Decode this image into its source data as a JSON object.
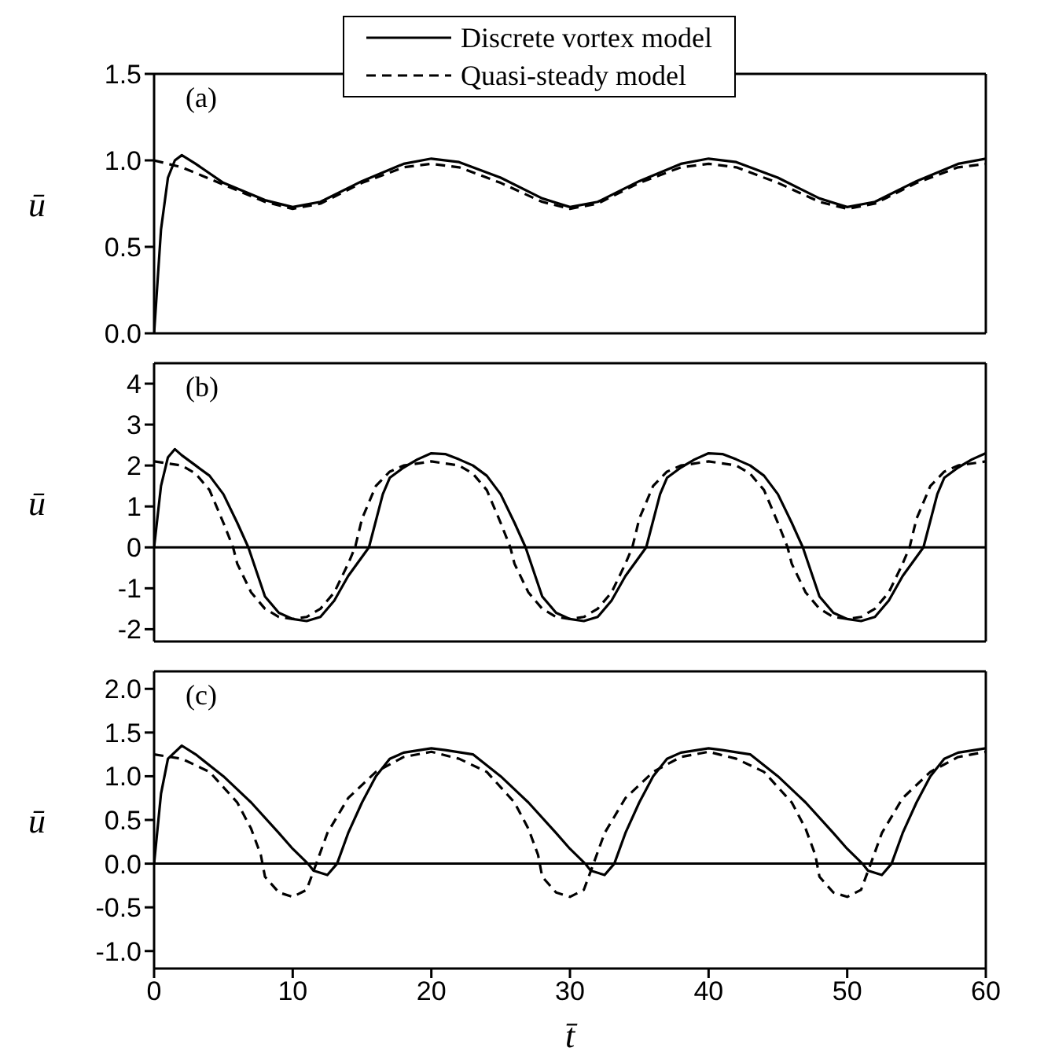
{
  "chart_data": [
    {
      "type": "line",
      "ylabel": "ū",
      "annotations": [
        "(a)"
      ],
      "legend": "top",
      "tick_labels": "y",
      "xlim": [
        0,
        60
      ],
      "xticks": [
        0,
        10,
        20,
        30,
        40,
        50,
        60
      ],
      "ylim": [
        0,
        1.5
      ],
      "yticks": [
        {
          "value": 0,
          "label": "0.0"
        },
        {
          "value": 0.5,
          "label": "0.5"
        },
        {
          "value": 1,
          "label": "1.0"
        },
        {
          "value": 1.5,
          "label": "1.5"
        }
      ],
      "series": [
        {
          "name": "Discrete vortex model",
          "color": "#000000",
          "line_style": "solid",
          "x": [
            0,
            0.5,
            1,
            1.5,
            2,
            3,
            5,
            8,
            10,
            12,
            15,
            18,
            20,
            22,
            25,
            28,
            30,
            32,
            35,
            38,
            40,
            42,
            45,
            48,
            50,
            52,
            55,
            58,
            60
          ],
          "values": [
            0,
            0.6,
            0.9,
            1.0,
            1.03,
            0.98,
            0.87,
            0.77,
            0.73,
            0.76,
            0.88,
            0.98,
            1.01,
            0.99,
            0.9,
            0.78,
            0.73,
            0.76,
            0.88,
            0.98,
            1.01,
            0.99,
            0.9,
            0.78,
            0.73,
            0.76,
            0.88,
            0.98,
            1.01
          ]
        },
        {
          "name": "Quasi-steady model",
          "color": "#000000",
          "line_style": "dashed",
          "x": [
            0,
            2,
            5,
            8,
            10,
            12,
            15,
            18,
            20,
            22,
            25,
            28,
            30,
            32,
            35,
            38,
            40,
            42,
            45,
            48,
            50,
            52,
            55,
            58,
            60
          ],
          "values": [
            1.0,
            0.96,
            0.86,
            0.76,
            0.72,
            0.75,
            0.87,
            0.96,
            0.98,
            0.96,
            0.87,
            0.76,
            0.72,
            0.75,
            0.87,
            0.96,
            0.98,
            0.96,
            0.87,
            0.76,
            0.72,
            0.75,
            0.87,
            0.96,
            0.98
          ]
        }
      ]
    },
    {
      "type": "line",
      "ylabel": "ū",
      "annotations": [
        "(b)"
      ],
      "tick_labels": "y",
      "xlim": [
        0,
        60
      ],
      "xticks": [
        0,
        10,
        20,
        30,
        40,
        50,
        60
      ],
      "ylim": [
        -2.3,
        4.5
      ],
      "yticks": [
        -2,
        -1,
        0,
        1,
        2,
        3,
        4
      ],
      "ref_lines": [
        {
          "axis": "y",
          "value": 0,
          "color": "#000000"
        }
      ],
      "series": [
        {
          "color": "#000000",
          "line_style": "solid",
          "x": [
            0,
            0.5,
            1,
            1.5,
            2,
            3,
            4,
            5,
            6,
            6.8,
            7.5,
            8,
            9,
            10,
            11,
            12,
            13,
            14,
            15.5,
            16.5,
            17,
            18,
            19,
            20,
            21,
            22,
            23,
            24,
            25,
            26,
            26.8,
            27.5,
            28,
            29,
            30,
            31,
            32,
            33,
            34,
            35.5,
            36.5,
            37,
            38,
            39,
            40,
            41,
            42,
            43,
            44,
            45,
            46,
            46.8,
            47.5,
            48,
            49,
            50,
            51,
            52,
            53,
            54,
            55.5,
            56.5,
            57,
            58,
            59,
            60
          ],
          "values": [
            0,
            1.5,
            2.2,
            2.4,
            2.25,
            2.0,
            1.75,
            1.3,
            0.6,
            0,
            -0.7,
            -1.2,
            -1.6,
            -1.75,
            -1.8,
            -1.7,
            -1.3,
            -0.7,
            0,
            1.3,
            1.7,
            1.95,
            2.15,
            2.3,
            2.28,
            2.15,
            2.0,
            1.75,
            1.3,
            0.6,
            0,
            -0.7,
            -1.2,
            -1.6,
            -1.75,
            -1.8,
            -1.7,
            -1.3,
            -0.7,
            0,
            1.3,
            1.7,
            1.95,
            2.15,
            2.3,
            2.28,
            2.15,
            2.0,
            1.75,
            1.3,
            0.6,
            0,
            -0.7,
            -1.2,
            -1.6,
            -1.75,
            -1.8,
            -1.7,
            -1.3,
            -0.7,
            0,
            1.3,
            1.7,
            1.95,
            2.15,
            2.3
          ]
        },
        {
          "color": "#000000",
          "line_style": "dashed",
          "x": [
            0,
            2,
            3,
            4,
            5,
            5.7,
            6,
            7,
            8,
            9,
            10,
            11,
            12,
            13,
            14,
            14.5,
            15,
            16,
            17,
            18,
            20,
            22,
            23,
            24,
            25,
            25.7,
            26,
            27,
            28,
            29,
            30,
            31,
            32,
            33,
            34,
            34.5,
            35,
            36,
            37,
            38,
            40,
            42,
            43,
            44,
            45,
            45.7,
            46,
            47,
            48,
            49,
            50,
            51,
            52,
            53,
            54,
            54.5,
            55,
            56,
            57,
            58,
            60
          ],
          "values": [
            2.1,
            2.0,
            1.8,
            1.4,
            0.6,
            0,
            -0.4,
            -1.1,
            -1.5,
            -1.7,
            -1.75,
            -1.7,
            -1.5,
            -1.1,
            -0.4,
            0,
            0.7,
            1.5,
            1.85,
            2.0,
            2.1,
            2.0,
            1.8,
            1.4,
            0.6,
            0,
            -0.4,
            -1.1,
            -1.5,
            -1.7,
            -1.75,
            -1.7,
            -1.5,
            -1.1,
            -0.4,
            0,
            0.7,
            1.5,
            1.85,
            2.0,
            2.1,
            2.0,
            1.8,
            1.4,
            0.6,
            0,
            -0.4,
            -1.1,
            -1.5,
            -1.7,
            -1.75,
            -1.7,
            -1.5,
            -1.1,
            -0.4,
            0,
            0.7,
            1.5,
            1.85,
            2.0,
            2.1
          ]
        }
      ]
    },
    {
      "type": "line",
      "ylabel": "ū",
      "xlabel": "t̄",
      "annotations": [
        "(c)"
      ],
      "xlim": [
        0,
        60
      ],
      "xticks": [
        0,
        10,
        20,
        30,
        40,
        50,
        60
      ],
      "ylim": [
        -1.2,
        2.2
      ],
      "yticks": [
        {
          "value": -1,
          "label": "-1.0"
        },
        {
          "value": -0.5,
          "label": "-0.5"
        },
        {
          "value": 0,
          "label": "0.0"
        },
        {
          "value": 0.5,
          "label": "0.5"
        },
        {
          "value": 1,
          "label": "1.0"
        },
        {
          "value": 1.5,
          "label": "1.5"
        },
        {
          "value": 2,
          "label": "2.0"
        }
      ],
      "ref_lines": [
        {
          "axis": "y",
          "value": 0,
          "color": "#000000"
        }
      ],
      "series": [
        {
          "color": "#000000",
          "line_style": "solid",
          "x": [
            0,
            0.5,
            1,
            2,
            3,
            5,
            7,
            9,
            10,
            11.1,
            11.5,
            12.5,
            13.2,
            14,
            15,
            16,
            17,
            18,
            20,
            21,
            23,
            25,
            27,
            29,
            30,
            31.1,
            31.5,
            32.5,
            33.2,
            34,
            35,
            36,
            37,
            38,
            40,
            41,
            43,
            45,
            47,
            49,
            50,
            51.1,
            51.5,
            52.5,
            53.2,
            54,
            55,
            56,
            57,
            58,
            60
          ],
          "values": [
            0,
            0.8,
            1.2,
            1.35,
            1.25,
            1.0,
            0.7,
            0.35,
            0.17,
            0,
            -0.08,
            -0.13,
            0,
            0.35,
            0.7,
            1.0,
            1.2,
            1.27,
            1.32,
            1.3,
            1.25,
            1.0,
            0.7,
            0.35,
            0.17,
            0,
            -0.08,
            -0.13,
            0,
            0.35,
            0.7,
            1.0,
            1.2,
            1.27,
            1.32,
            1.3,
            1.25,
            1.0,
            0.7,
            0.35,
            0.17,
            0,
            -0.08,
            -0.13,
            0,
            0.35,
            0.7,
            1.0,
            1.2,
            1.27,
            1.32
          ]
        },
        {
          "color": "#000000",
          "line_style": "dashed",
          "x": [
            0,
            2,
            4,
            6,
            7,
            7.7,
            8,
            9,
            10,
            11,
            11.7,
            12.5,
            14,
            16,
            18,
            20,
            22,
            24,
            26,
            27,
            27.7,
            28,
            29,
            30,
            31,
            31.7,
            32.5,
            34,
            36,
            38,
            40,
            42,
            44,
            46,
            47,
            47.7,
            48,
            49,
            50,
            51,
            51.7,
            52.5,
            54,
            56,
            58,
            60
          ],
          "values": [
            1.25,
            1.2,
            1.05,
            0.7,
            0.4,
            0.1,
            -0.15,
            -0.33,
            -0.38,
            -0.3,
            0,
            0.35,
            0.75,
            1.05,
            1.22,
            1.28,
            1.2,
            1.05,
            0.7,
            0.4,
            0.1,
            -0.15,
            -0.33,
            -0.38,
            -0.3,
            0,
            0.35,
            0.75,
            1.05,
            1.22,
            1.28,
            1.2,
            1.05,
            0.7,
            0.4,
            0.1,
            -0.15,
            -0.33,
            -0.38,
            -0.3,
            0,
            0.35,
            0.75,
            1.05,
            1.22,
            1.28
          ]
        }
      ]
    }
  ]
}
